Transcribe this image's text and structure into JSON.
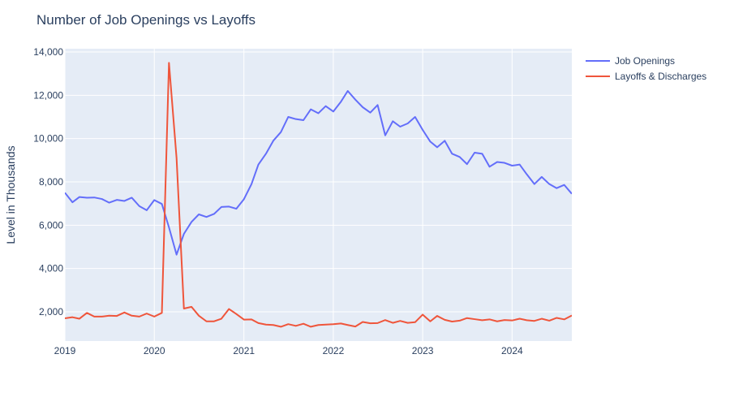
{
  "chart_data": {
    "type": "line",
    "title": "Number of Job Openings vs Layoffs",
    "xlabel": "",
    "ylabel": "Level in Thousands",
    "xlim": [
      "2019-01-01",
      "2024-09-01"
    ],
    "ylim": [
      650,
      14150
    ],
    "x_ticks": [
      "2019-01-01",
      "2020-01-01",
      "2021-01-01",
      "2022-01-01",
      "2023-01-01",
      "2024-01-01"
    ],
    "x_tick_labels": [
      "2019",
      "2020",
      "2021",
      "2022",
      "2023",
      "2024"
    ],
    "y_ticks": [
      2000,
      4000,
      6000,
      8000,
      10000,
      12000,
      14000
    ],
    "y_tick_labels": [
      "2,000",
      "4,000",
      "6,000",
      "8,000",
      "10,000",
      "12,000",
      "14,000"
    ],
    "grid": true,
    "legend_position": "top-right",
    "x": [
      "2019-01",
      "2019-02",
      "2019-03",
      "2019-04",
      "2019-05",
      "2019-06",
      "2019-07",
      "2019-08",
      "2019-09",
      "2019-10",
      "2019-11",
      "2019-12",
      "2020-01",
      "2020-02",
      "2020-03",
      "2020-04",
      "2020-05",
      "2020-06",
      "2020-07",
      "2020-08",
      "2020-09",
      "2020-10",
      "2020-11",
      "2020-12",
      "2021-01",
      "2021-02",
      "2021-03",
      "2021-04",
      "2021-05",
      "2021-06",
      "2021-07",
      "2021-08",
      "2021-09",
      "2021-10",
      "2021-11",
      "2021-12",
      "2022-01",
      "2022-02",
      "2022-03",
      "2022-04",
      "2022-05",
      "2022-06",
      "2022-07",
      "2022-08",
      "2022-09",
      "2022-10",
      "2022-11",
      "2022-12",
      "2023-01",
      "2023-02",
      "2023-03",
      "2023-04",
      "2023-05",
      "2023-06",
      "2023-07",
      "2023-08",
      "2023-09",
      "2023-10",
      "2023-11",
      "2023-12",
      "2024-01",
      "2024-02",
      "2024-03",
      "2024-04",
      "2024-05",
      "2024-06",
      "2024-07",
      "2024-08",
      "2024-09"
    ],
    "series": [
      {
        "name": "Job Openings",
        "color": "#636efa",
        "values": [
          7500,
          7060,
          7300,
          7270,
          7280,
          7210,
          7040,
          7170,
          7120,
          7270,
          6880,
          6690,
          7160,
          6980,
          5900,
          4640,
          5600,
          6150,
          6500,
          6380,
          6520,
          6840,
          6860,
          6760,
          7200,
          7900,
          8800,
          9300,
          9900,
          10300,
          11000,
          10900,
          10850,
          11350,
          11170,
          11500,
          11250,
          11700,
          12200,
          11800,
          11450,
          11200,
          11550,
          10150,
          10800,
          10550,
          10700,
          11000,
          10400,
          9860,
          9600,
          9900,
          9300,
          9150,
          8820,
          9350,
          9300,
          8700,
          8920,
          8880,
          8750,
          8800,
          8350,
          7900,
          8230,
          7900,
          7710,
          7860,
          7450
        ]
      },
      {
        "name": "Layoffs & Discharges",
        "color": "#ef553b",
        "values": [
          1700,
          1750,
          1680,
          1950,
          1780,
          1780,
          1820,
          1810,
          1970,
          1820,
          1780,
          1920,
          1780,
          1950,
          13500,
          9100,
          2150,
          2230,
          1820,
          1560,
          1560,
          1680,
          2130,
          1900,
          1640,
          1650,
          1480,
          1410,
          1390,
          1310,
          1430,
          1350,
          1450,
          1310,
          1390,
          1410,
          1430,
          1460,
          1390,
          1320,
          1530,
          1470,
          1480,
          1620,
          1490,
          1580,
          1490,
          1520,
          1870,
          1560,
          1810,
          1630,
          1550,
          1590,
          1710,
          1660,
          1610,
          1650,
          1560,
          1620,
          1600,
          1680,
          1610,
          1580,
          1680,
          1590,
          1720,
          1650,
          1830
        ]
      }
    ]
  }
}
